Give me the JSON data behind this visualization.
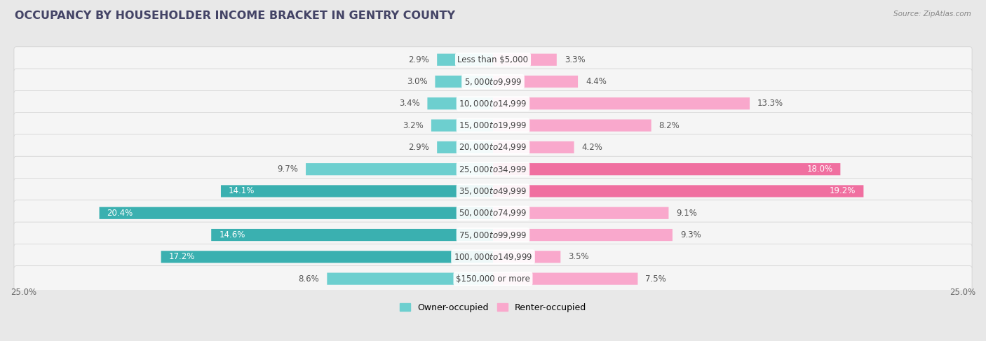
{
  "title": "OCCUPANCY BY HOUSEHOLDER INCOME BRACKET IN GENTRY COUNTY",
  "source": "Source: ZipAtlas.com",
  "categories": [
    "Less than $5,000",
    "$5,000 to $9,999",
    "$10,000 to $14,999",
    "$15,000 to $19,999",
    "$20,000 to $24,999",
    "$25,000 to $34,999",
    "$35,000 to $49,999",
    "$50,000 to $74,999",
    "$75,000 to $99,999",
    "$100,000 to $149,999",
    "$150,000 or more"
  ],
  "owner_values": [
    2.9,
    3.0,
    3.4,
    3.2,
    2.9,
    9.7,
    14.1,
    20.4,
    14.6,
    17.2,
    8.6
  ],
  "renter_values": [
    3.3,
    4.4,
    13.3,
    8.2,
    4.2,
    18.0,
    19.2,
    9.1,
    9.3,
    3.5,
    7.5
  ],
  "owner_color_light": "#6dcfcf",
  "owner_color_dark": "#3ab0b0",
  "renter_color_light": "#f9a8cc",
  "renter_color_dark": "#f06fa0",
  "axis_limit": 25.0,
  "bg_color": "#e8e8e8",
  "row_bg": "#f5f5f5",
  "label_fontsize": 8.5,
  "cat_fontsize": 8.5,
  "title_fontsize": 11.5,
  "legend_fontsize": 9,
  "bar_height": 0.55,
  "owner_dark_threshold": 13.0,
  "renter_dark_threshold": 17.0
}
